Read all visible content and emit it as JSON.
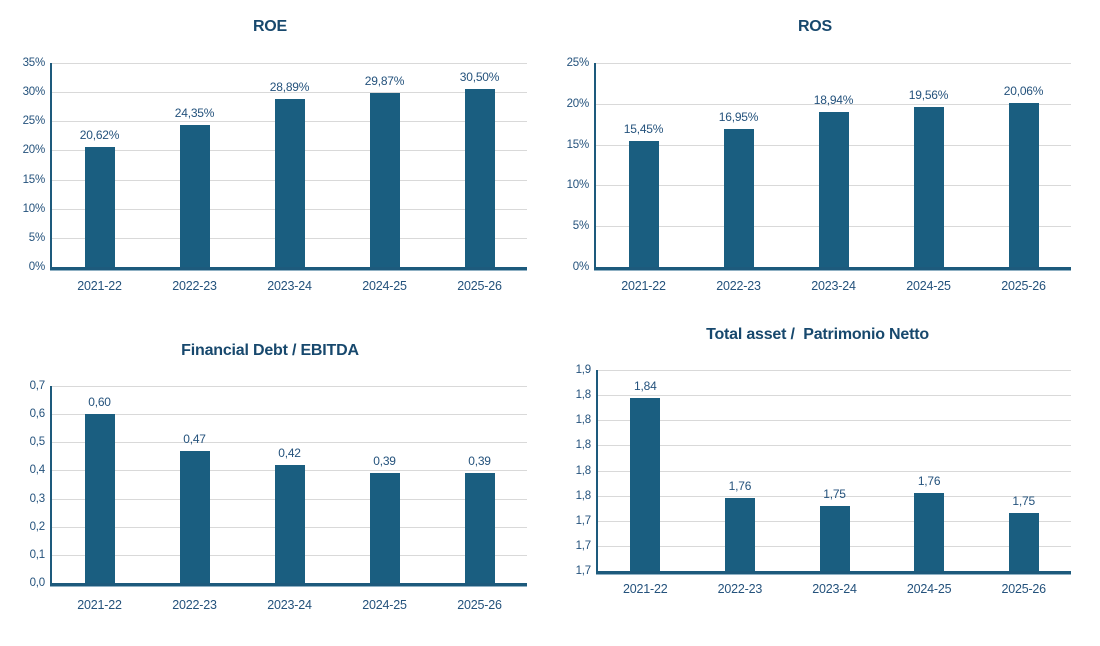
{
  "colors": {
    "bar": "#1a5e80",
    "axis": "#1d5a7c",
    "gridline": "#d9d9d9",
    "title_text": "#17486d",
    "label_text": "#24527c",
    "background": "#ffffff"
  },
  "chart_data": [
    {
      "type": "bar",
      "title": "ROE",
      "categories": [
        "2021-22",
        "2022-23",
        "2023-24",
        "2024-25",
        "2025-26"
      ],
      "values": [
        20.62,
        24.35,
        28.89,
        29.87,
        30.5
      ],
      "value_labels": [
        "20,62%",
        "24,35%",
        "28,89%",
        "29,87%",
        "30,50%"
      ],
      "y_ticks": [
        "35%",
        "30%",
        "25%",
        "20%",
        "15%",
        "10%",
        "5%",
        "0%"
      ],
      "ylim": [
        0,
        35
      ],
      "xlabel": "",
      "ylabel": "",
      "grid": true,
      "legend": false
    },
    {
      "type": "bar",
      "title": "ROS",
      "categories": [
        "2021-22",
        "2022-23",
        "2023-24",
        "2024-25",
        "2025-26"
      ],
      "values": [
        15.45,
        16.95,
        18.94,
        19.56,
        20.06
      ],
      "value_labels": [
        "15,45%",
        "16,95%",
        "18,94%",
        "19,56%",
        "20,06%"
      ],
      "y_ticks": [
        "25%",
        "20%",
        "15%",
        "10%",
        "5%",
        "0%"
      ],
      "ylim": [
        0,
        25
      ],
      "xlabel": "",
      "ylabel": "",
      "grid": true,
      "legend": false
    },
    {
      "type": "bar",
      "title": "Financial Debt / EBITDA",
      "categories": [
        "2021-22",
        "2022-23",
        "2023-24",
        "2024-25",
        "2025-26"
      ],
      "values": [
        0.6,
        0.47,
        0.42,
        0.39,
        0.39
      ],
      "value_labels": [
        "0,60",
        "0,47",
        "0,42",
        "0,39",
        "0,39"
      ],
      "y_ticks": [
        "0,7",
        "0,6",
        "0,5",
        "0,4",
        "0,3",
        "0,2",
        "0,1",
        "0,0"
      ],
      "ylim": [
        0,
        0.7
      ],
      "xlabel": "",
      "ylabel": "",
      "grid": true,
      "legend": false
    },
    {
      "type": "bar",
      "title": "Total asset /  Patrimonio Netto",
      "categories": [
        "2021-22",
        "2022-23",
        "2023-24",
        "2024-25",
        "2025-26"
      ],
      "values": [
        1.84,
        1.76,
        1.75,
        1.76,
        1.75
      ],
      "plot_values": [
        1.838,
        1.758,
        1.752,
        1.762,
        1.746
      ],
      "value_labels": [
        "1,84",
        "1,76",
        "1,75",
        "1,76",
        "1,75"
      ],
      "y_ticks": [
        "1,9",
        "1,8",
        "1,8",
        "1,8",
        "1,8",
        "1,8",
        "1,7",
        "1,7",
        "1,7"
      ],
      "ylim": [
        1.7,
        1.86
      ],
      "xlabel": "",
      "ylabel": "",
      "grid": true,
      "legend": false
    }
  ]
}
